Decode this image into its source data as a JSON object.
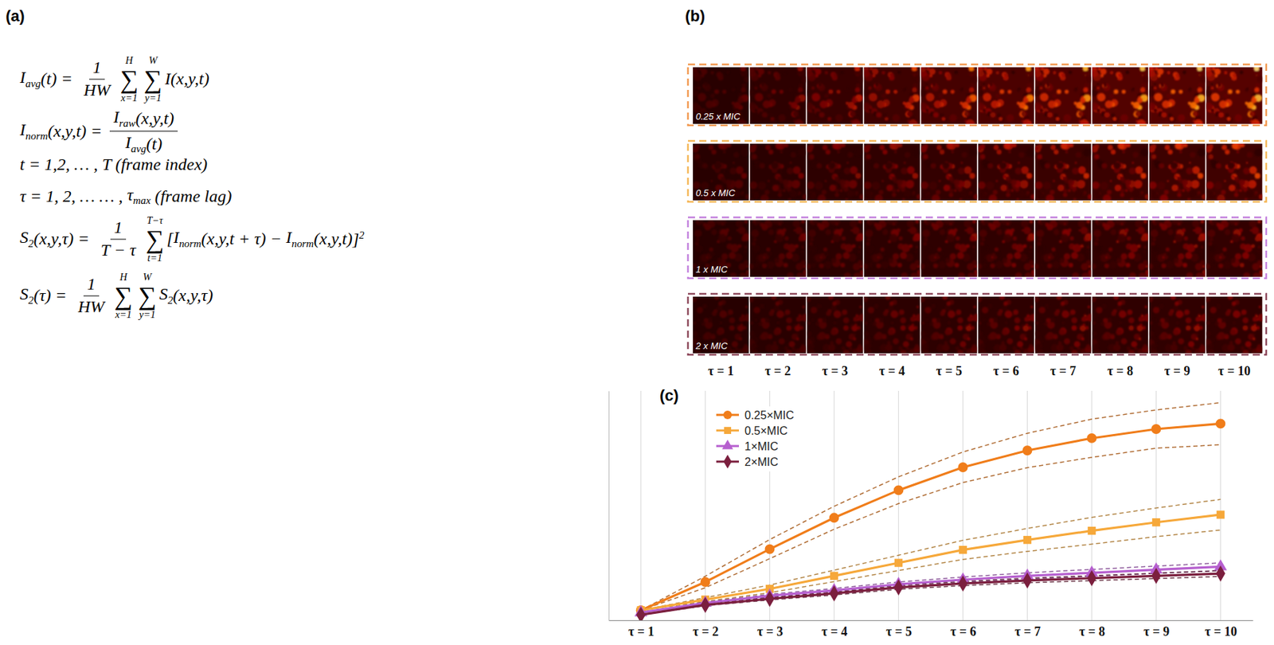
{
  "panel_a": {
    "label": "(a)",
    "equations": [
      [
        {
          "base": "I",
          "sub": "avg"
        },
        "(t) = ",
        {
          "frac": [
            [
              "1"
            ],
            [
              "HW"
            ]
          ]
        },
        {
          "sum": "∑",
          "lower": "x=1",
          "upper": "H"
        },
        {
          "sum": "∑",
          "lower": "y=1",
          "upper": "W"
        },
        "I(x,y,t)"
      ],
      [
        {
          "base": "I",
          "sub": "norm"
        },
        "(x,y,t) = ",
        {
          "frac": [
            [
              {
                "base": "I",
                "sub": "raw"
              },
              "(x,y,t)"
            ],
            [
              {
                "base": "I",
                "sub": "avg"
              },
              "(t)"
            ]
          ]
        }
      ],
      [
        "t = 1,2, … , T (frame index)"
      ],
      [
        "τ = 1, 2, … … , ",
        {
          "base": "τ",
          "sub": "max"
        },
        " (frame lag)"
      ],
      [
        {
          "base": "S",
          "sub": "2"
        },
        "(x,y,τ) = ",
        {
          "frac": [
            [
              "1"
            ],
            [
              "T − τ"
            ]
          ]
        },
        {
          "sum": "∑",
          "lower": "t=1",
          "upper": "T−τ"
        },
        "[",
        {
          "base": "I",
          "sub": "norm"
        },
        "(x,y,t + τ) − ",
        {
          "base": "I",
          "sub": "norm"
        },
        "(x,y,t)",
        {
          "base": "]",
          "sup": "2"
        }
      ],
      [
        {
          "base": "S",
          "sub": "2"
        },
        "(τ) = ",
        {
          "frac": [
            [
              "1"
            ],
            [
              "HW"
            ]
          ]
        },
        {
          "sum": "∑",
          "lower": "x=1",
          "upper": "H"
        },
        {
          "sum": "∑",
          "lower": "y=1",
          "upper": "W"
        },
        {
          "base": "S",
          "sub": "2"
        },
        "(x,y,τ)"
      ]
    ]
  },
  "panel_b": {
    "label": "(b)",
    "rows": [
      {
        "label": "0.25 x MIC",
        "color": "#f29a52"
      },
      {
        "label": "0.5 x MIC",
        "color": "#f5b85a"
      },
      {
        "label": "1 x MIC",
        "color": "#c483de"
      },
      {
        "label": "2 x MIC",
        "color": "#8e4a5c"
      }
    ],
    "columns": [
      "τ = 1",
      "τ = 2",
      "τ = 3",
      "τ = 4",
      "τ = 5",
      "τ = 6",
      "τ = 7",
      "τ = 8",
      "τ = 9",
      "τ = 10"
    ]
  },
  "panel_c": {
    "label": "(c)"
  },
  "chart_data": {
    "type": "line",
    "categories": [
      "τ = 1",
      "τ = 2",
      "τ = 3",
      "τ = 4",
      "τ = 5",
      "τ = 6",
      "τ = 7",
      "τ = 8",
      "τ = 9",
      "τ = 10"
    ],
    "series": [
      {
        "name": "0.25×MIC",
        "color": "#f07d1a",
        "marker": "circle",
        "values": [
          0.052,
          0.2,
          0.372,
          0.536,
          0.68,
          0.8,
          0.888,
          0.952,
          1.0,
          1.028
        ],
        "band": [
          0,
          0.03,
          0.05,
          0.06,
          0.07,
          0.08,
          0.09,
          0.1,
          0.1,
          0.11
        ]
      },
      {
        "name": "0.5×MIC",
        "color": "#f6a83a",
        "marker": "square",
        "values": [
          0.052,
          0.108,
          0.164,
          0.232,
          0.3,
          0.368,
          0.42,
          0.468,
          0.512,
          0.552
        ],
        "band": [
          0,
          0.01,
          0.02,
          0.03,
          0.04,
          0.05,
          0.06,
          0.07,
          0.075,
          0.08
        ]
      },
      {
        "name": "1×MIC",
        "color": "#b65fcf",
        "marker": "triangle",
        "values": [
          0.04,
          0.09,
          0.128,
          0.156,
          0.188,
          0.212,
          0.232,
          0.248,
          0.264,
          0.28
        ],
        "band": [
          0,
          0.005,
          0.008,
          0.01,
          0.012,
          0.014,
          0.016,
          0.018,
          0.019,
          0.02
        ]
      },
      {
        "name": "2×MIC",
        "color": "#7b1f3e",
        "marker": "diamond",
        "values": [
          0.028,
          0.08,
          0.112,
          0.14,
          0.172,
          0.192,
          0.208,
          0.22,
          0.232,
          0.244
        ],
        "band": [
          0,
          0.004,
          0.006,
          0.008,
          0.01,
          0.011,
          0.012,
          0.013,
          0.014,
          0.015
        ]
      }
    ],
    "ylim": [
      0,
      1.2
    ],
    "yticks": [],
    "tick_labels": "x",
    "grid": true,
    "legend": "upper left"
  }
}
